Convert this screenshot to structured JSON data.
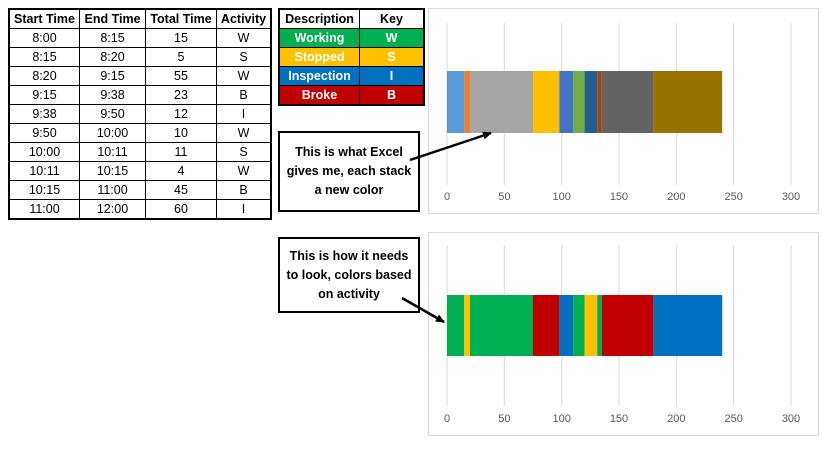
{
  "table": {
    "headers": [
      "Start Time",
      "End Time",
      "Total Time",
      "Activity"
    ],
    "rows": [
      [
        "8:00",
        "8:15",
        "15",
        "W"
      ],
      [
        "8:15",
        "8:20",
        "5",
        "S"
      ],
      [
        "8:20",
        "9:15",
        "55",
        "W"
      ],
      [
        "9:15",
        "9:38",
        "23",
        "B"
      ],
      [
        "9:38",
        "9:50",
        "12",
        "I"
      ],
      [
        "9:50",
        "10:00",
        "10",
        "W"
      ],
      [
        "10:00",
        "10:11",
        "11",
        "S"
      ],
      [
        "10:11",
        "10:15",
        "4",
        "W"
      ],
      [
        "10:15",
        "11:00",
        "45",
        "B"
      ],
      [
        "11:00",
        "12:00",
        "60",
        "I"
      ]
    ]
  },
  "key": {
    "headers": [
      "Description",
      "Key"
    ],
    "rows": [
      {
        "description": "Working",
        "key": "W",
        "color": "#00b050"
      },
      {
        "description": "Stopped",
        "key": "S",
        "color": "#ffc000"
      },
      {
        "description": "Inspection",
        "key": "I",
        "color": "#0070c0"
      },
      {
        "description": "Broke",
        "key": "B",
        "color": "#c00000"
      }
    ]
  },
  "callouts": {
    "top": "This is what Excel gives me, each stack a new color",
    "bottom": "This is how it needs to look, colors based on activity"
  },
  "chart_data": [
    {
      "type": "bar",
      "orientation": "horizontal-stacked",
      "xlim": [
        0,
        300
      ],
      "xticks": [
        0,
        50,
        100,
        150,
        200,
        250,
        300
      ],
      "grid": true,
      "values": [
        15,
        5,
        55,
        23,
        12,
        10,
        11,
        4,
        45,
        60
      ],
      "colors": [
        "#5b9bd5",
        "#ed7d31",
        "#a5a5a5",
        "#ffc000",
        "#4472c4",
        "#70ad47",
        "#255e91",
        "#9e480e",
        "#636363",
        "#997300"
      ]
    },
    {
      "type": "bar",
      "orientation": "horizontal-stacked",
      "xlim": [
        0,
        300
      ],
      "xticks": [
        0,
        50,
        100,
        150,
        200,
        250,
        300
      ],
      "grid": true,
      "values": [
        15,
        5,
        55,
        23,
        12,
        10,
        11,
        4,
        45,
        60
      ],
      "colors": [
        "#00b050",
        "#ffc000",
        "#00b050",
        "#c00000",
        "#0070c0",
        "#00b050",
        "#ffc000",
        "#00b050",
        "#c00000",
        "#0070c0"
      ]
    }
  ]
}
